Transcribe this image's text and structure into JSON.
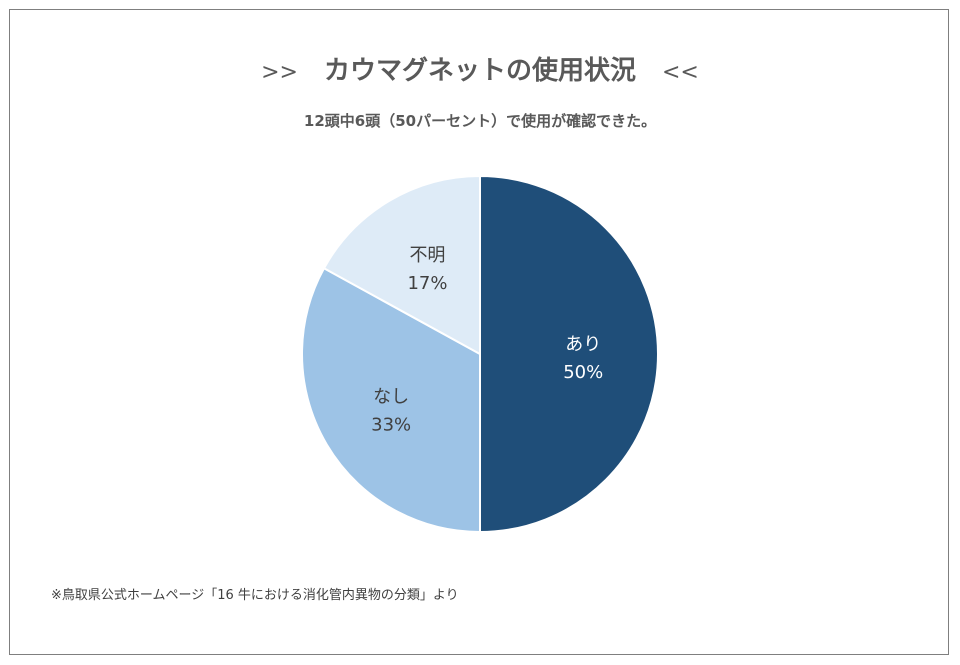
{
  "title": {
    "left_deco": ">>",
    "text": "カウマグネットの使用状況",
    "right_deco": "<<"
  },
  "subtitle": "12頭中6頭（50パーセント）で使用が確認できた。",
  "footnote": "※鳥取県公式ホームページ「16 牛における消化管内異物の分類」より",
  "chart_data": {
    "type": "pie",
    "title": "カウマグネットの使用状況",
    "slices": [
      {
        "label": "あり",
        "value": 50,
        "percent_label": "50%",
        "color": "#1f4e79",
        "text_color": "#ffffff"
      },
      {
        "label": "なし",
        "value": 33,
        "percent_label": "33%",
        "color": "#9dc3e6",
        "text_color": "#404040"
      },
      {
        "label": "不明",
        "value": 17,
        "percent_label": "17%",
        "color": "#deebf7",
        "text_color": "#404040"
      }
    ],
    "start_angle": "12 o'clock",
    "direction": "clockwise",
    "legend": "none"
  }
}
